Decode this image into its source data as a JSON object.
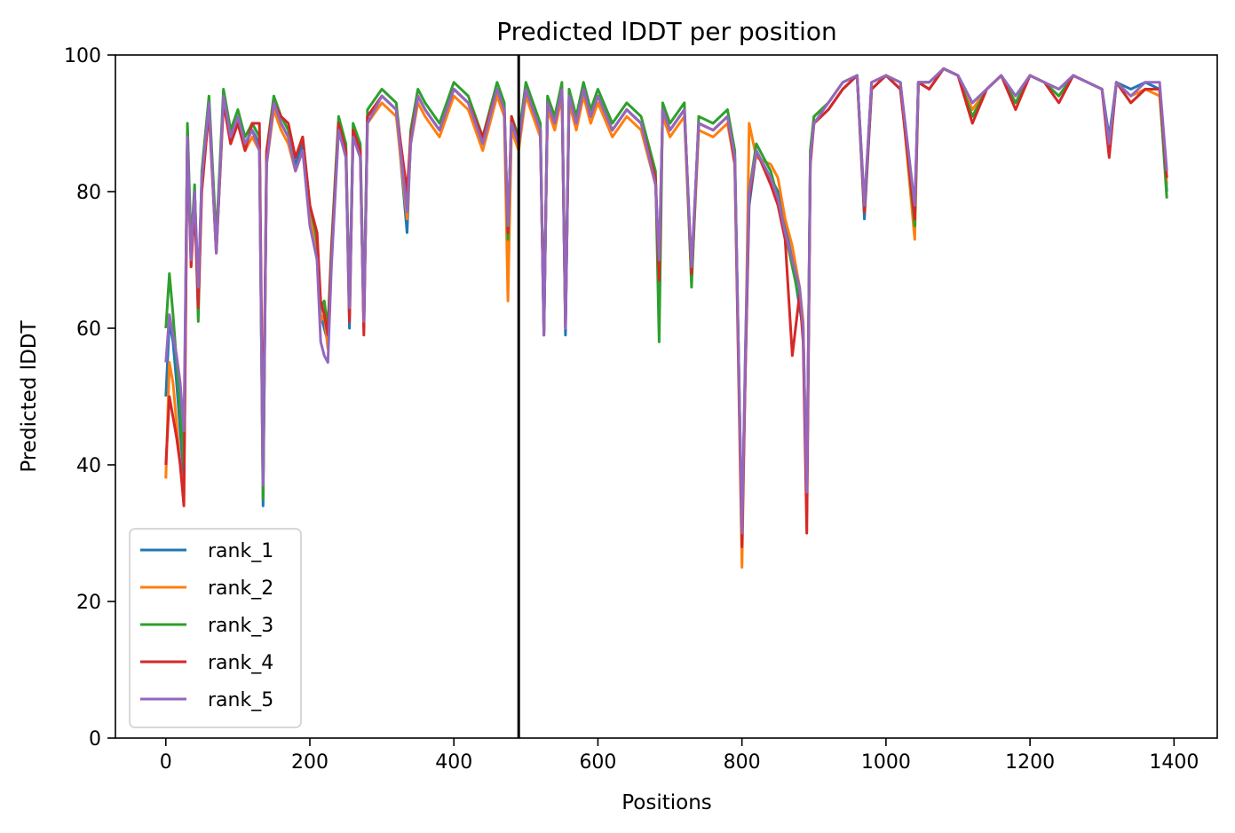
{
  "chart_data": {
    "type": "line",
    "title": "Predicted lDDT per position",
    "xlabel": "Positions",
    "ylabel": "Predicted lDDT",
    "xlim": [
      -70,
      1460
    ],
    "ylim": [
      0,
      100
    ],
    "xticks": [
      0,
      200,
      400,
      600,
      800,
      1000,
      1200,
      1400
    ],
    "yticks": [
      0,
      20,
      40,
      60,
      80,
      100
    ],
    "grid": false,
    "legend_position": "lower-left",
    "vline": {
      "x": 490,
      "color": "#000000"
    },
    "x": [
      0,
      5,
      10,
      15,
      20,
      25,
      30,
      35,
      40,
      45,
      50,
      60,
      70,
      80,
      90,
      100,
      110,
      120,
      130,
      135,
      140,
      150,
      160,
      170,
      180,
      190,
      200,
      210,
      215,
      220,
      225,
      230,
      240,
      250,
      255,
      260,
      270,
      275,
      280,
      300,
      320,
      335,
      340,
      350,
      360,
      380,
      400,
      420,
      440,
      460,
      470,
      475,
      480,
      490,
      500,
      510,
      520,
      525,
      530,
      540,
      550,
      555,
      560,
      570,
      580,
      590,
      600,
      620,
      640,
      660,
      680,
      685,
      690,
      700,
      720,
      730,
      740,
      760,
      780,
      790,
      800,
      805,
      810,
      820,
      840,
      850,
      860,
      870,
      880,
      885,
      890,
      895,
      900,
      920,
      940,
      960,
      970,
      980,
      1000,
      1020,
      1040,
      1045,
      1060,
      1080,
      1100,
      1120,
      1140,
      1160,
      1180,
      1200,
      1220,
      1240,
      1260,
      1280,
      1300,
      1310,
      1320,
      1340,
      1360,
      1380,
      1390
    ],
    "series": [
      {
        "name": "rank_1",
        "color": "#1f77b4",
        "values": [
          50,
          61,
          58,
          52,
          45,
          38,
          89,
          70,
          80,
          65,
          82,
          93,
          72,
          94,
          88,
          91,
          87,
          89,
          87,
          34,
          85,
          93,
          90,
          88,
          84,
          87,
          76,
          72,
          62,
          60,
          58,
          70,
          90,
          86,
          60,
          89,
          86,
          60,
          91,
          94,
          92,
          74,
          88,
          94,
          92,
          89,
          95,
          93,
          87,
          95,
          92,
          72,
          90,
          87,
          95,
          92,
          89,
          59,
          93,
          90,
          95,
          59,
          94,
          90,
          95,
          91,
          94,
          89,
          92,
          90,
          82,
          69,
          92,
          89,
          92,
          68,
          90,
          89,
          91,
          85,
          30,
          55,
          78,
          86,
          82,
          80,
          75,
          70,
          63,
          60,
          35,
          85,
          90,
          92,
          95,
          97,
          76,
          95,
          97,
          95,
          77,
          96,
          95,
          98,
          97,
          93,
          95,
          97,
          94,
          97,
          96,
          95,
          97,
          96,
          95,
          88,
          96,
          95,
          96,
          95,
          80
        ]
      },
      {
        "name": "rank_2",
        "color": "#ff7f0e",
        "values": [
          38,
          55,
          52,
          46,
          40,
          35,
          88,
          69,
          79,
          64,
          81,
          92,
          71,
          93,
          87,
          90,
          86,
          88,
          86,
          36,
          84,
          92,
          89,
          87,
          83,
          86,
          77,
          70,
          61,
          62,
          57,
          71,
          89,
          85,
          62,
          88,
          85,
          61,
          90,
          93,
          91,
          76,
          87,
          93,
          91,
          88,
          94,
          92,
          86,
          94,
          91,
          64,
          89,
          86,
          94,
          91,
          88,
          60,
          92,
          89,
          94,
          60,
          93,
          89,
          94,
          90,
          93,
          88,
          91,
          89,
          81,
          68,
          91,
          88,
          91,
          67,
          89,
          88,
          90,
          84,
          25,
          56,
          90,
          85,
          84,
          82,
          76,
          72,
          66,
          61,
          34,
          86,
          91,
          93,
          96,
          97,
          77,
          96,
          97,
          96,
          73,
          96,
          96,
          98,
          97,
          92,
          95,
          97,
          93,
          97,
          96,
          94,
          97,
          96,
          95,
          87,
          96,
          94,
          95,
          94,
          81
        ]
      },
      {
        "name": "rank_3",
        "color": "#2ca02c",
        "values": [
          60,
          68,
          62,
          55,
          48,
          40,
          90,
          72,
          81,
          61,
          83,
          94,
          73,
          95,
          89,
          92,
          88,
          90,
          88,
          35,
          86,
          94,
          91,
          89,
          85,
          88,
          78,
          73,
          63,
          64,
          60,
          72,
          91,
          87,
          63,
          90,
          87,
          62,
          92,
          95,
          93,
          78,
          89,
          95,
          93,
          90,
          96,
          94,
          88,
          96,
          93,
          73,
          91,
          88,
          96,
          93,
          90,
          60,
          94,
          91,
          96,
          61,
          95,
          91,
          96,
          92,
          95,
          90,
          93,
          91,
          83,
          58,
          93,
          90,
          93,
          66,
          91,
          90,
          92,
          86,
          29,
          57,
          80,
          87,
          83,
          79,
          74,
          69,
          64,
          59,
          33,
          86,
          91,
          93,
          96,
          97,
          78,
          96,
          97,
          96,
          75,
          96,
          96,
          98,
          97,
          91,
          95,
          97,
          93,
          97,
          96,
          94,
          97,
          96,
          95,
          86,
          96,
          93,
          95,
          95,
          79
        ]
      },
      {
        "name": "rank_4",
        "color": "#d62728",
        "values": [
          40,
          50,
          47,
          44,
          40,
          34,
          88,
          69,
          78,
          63,
          80,
          92,
          71,
          93,
          87,
          90,
          86,
          90,
          90,
          40,
          86,
          93,
          91,
          90,
          85,
          88,
          78,
          74,
          64,
          62,
          59,
          71,
          90,
          86,
          61,
          89,
          86,
          59,
          91,
          94,
          92,
          80,
          88,
          94,
          92,
          89,
          95,
          93,
          88,
          95,
          92,
          74,
          91,
          87,
          95,
          92,
          89,
          59,
          93,
          90,
          95,
          60,
          94,
          90,
          95,
          91,
          94,
          89,
          92,
          90,
          82,
          67,
          92,
          89,
          92,
          68,
          90,
          89,
          91,
          84,
          28,
          55,
          79,
          86,
          81,
          78,
          73,
          56,
          65,
          58,
          30,
          84,
          90,
          92,
          95,
          97,
          77,
          95,
          97,
          95,
          76,
          96,
          95,
          98,
          97,
          90,
          95,
          97,
          92,
          97,
          96,
          93,
          97,
          96,
          95,
          85,
          96,
          93,
          95,
          95,
          82
        ]
      },
      {
        "name": "rank_5",
        "color": "#9467bd",
        "values": [
          55,
          62,
          59,
          56,
          52,
          45,
          88,
          70,
          80,
          66,
          82,
          93,
          71,
          94,
          88,
          91,
          87,
          89,
          86,
          37,
          84,
          93,
          90,
          88,
          83,
          86,
          75,
          70,
          58,
          56,
          55,
          69,
          89,
          85,
          63,
          88,
          85,
          61,
          90,
          94,
          92,
          77,
          87,
          94,
          92,
          89,
          95,
          93,
          87,
          95,
          92,
          75,
          90,
          87,
          95,
          92,
          89,
          59,
          93,
          90,
          95,
          60,
          94,
          90,
          95,
          91,
          94,
          89,
          92,
          90,
          81,
          70,
          92,
          89,
          92,
          69,
          90,
          89,
          91,
          85,
          30,
          58,
          80,
          86,
          82,
          79,
          74,
          70,
          66,
          60,
          36,
          85,
          90,
          93,
          96,
          97,
          78,
          96,
          97,
          96,
          78,
          96,
          96,
          98,
          97,
          93,
          95,
          97,
          94,
          97,
          96,
          95,
          97,
          96,
          95,
          87,
          96,
          94,
          96,
          96,
          83
        ]
      }
    ]
  }
}
